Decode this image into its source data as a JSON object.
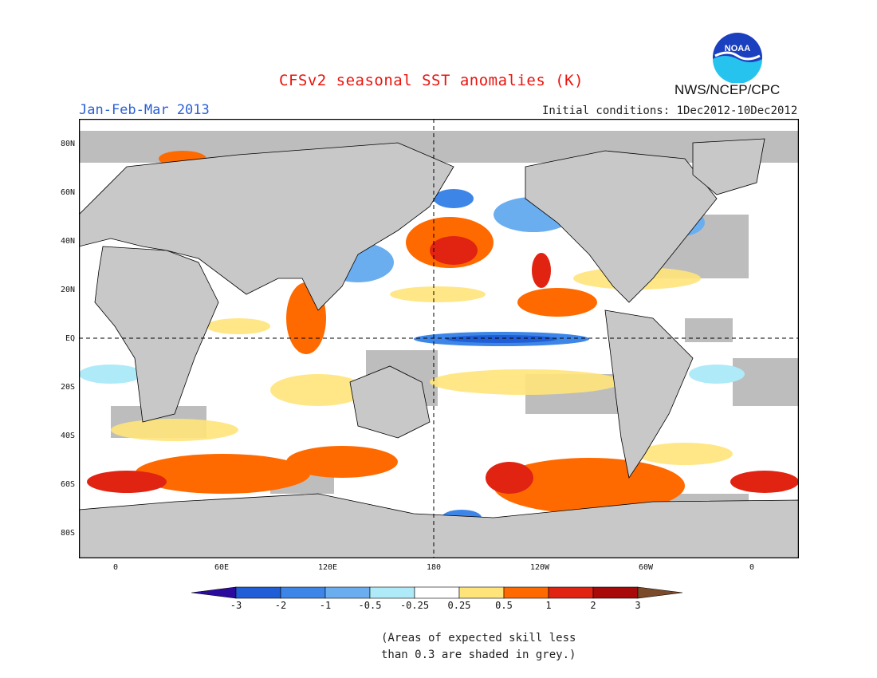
{
  "header": {
    "title": "CFSv2 seasonal SST anomalies (K)",
    "agency": "NWS/NCEP/CPC",
    "logo_text": "NOAA",
    "period": "Jan-Feb-Mar 2013",
    "initial_conditions": "Initial conditions: 1Dec2012-10Dec2012"
  },
  "map": {
    "lat_labels": [
      "80N",
      "60N",
      "40N",
      "20N",
      "EQ",
      "20S",
      "40S",
      "60S",
      "80S"
    ],
    "lon_labels": [
      "0",
      "60E",
      "120E",
      "180",
      "120W",
      "60W",
      "0"
    ],
    "land_color": "#c8c8c8",
    "skill_grey": "#bdbdbd"
  },
  "colorbar": {
    "labels": [
      "-3",
      "-2",
      "-1",
      "-0.5",
      "-0.25",
      "0.25",
      "0.5",
      "1",
      "2",
      "3"
    ],
    "colors": [
      "#2b0b9e",
      "#1f5ed6",
      "#3d86e8",
      "#6aaef0",
      "#aeeaf8",
      "#ffffff",
      "#ffe47a",
      "#ff6a00",
      "#e12312",
      "#a80a0a",
      "#7a4a2a"
    ]
  },
  "note": {
    "line1": "(Areas of expected skill less",
    "line2": "than 0.3 are shaded in grey.)"
  }
}
